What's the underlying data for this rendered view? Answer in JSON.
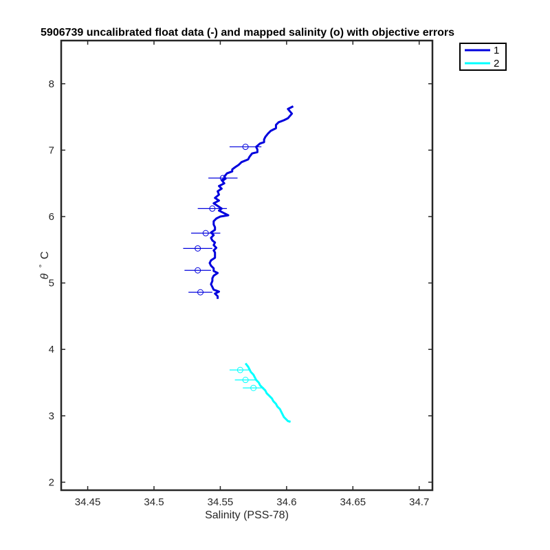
{
  "chart_data": {
    "type": "line",
    "title": "5906739 uncalibrated float data (-) and mapped salinity (o) with objective errors",
    "xlabel": "Salinity (PSS-78)",
    "ylabel_symbol": "θ",
    "ylabel_degree": "°",
    "ylabel_unit": "C",
    "xlim": [
      34.43,
      34.71
    ],
    "ylim": [
      1.88,
      8.65
    ],
    "xticks": [
      34.45,
      34.5,
      34.55,
      34.6,
      34.65,
      34.7
    ],
    "xtick_labels": [
      "34.45",
      "34.5",
      "34.55",
      "34.6",
      "34.65",
      "34.7"
    ],
    "yticks": [
      2,
      3,
      4,
      5,
      6,
      7,
      8
    ],
    "ytick_labels": [
      "2",
      "3",
      "4",
      "5",
      "6",
      "7",
      "8"
    ],
    "grid": false,
    "legend_position": "outside-top-right",
    "series": [
      {
        "name": "1",
        "color": "#0000dd",
        "line": [
          [
            34.605,
            7.66
          ],
          [
            34.601,
            7.62
          ],
          [
            34.604,
            7.55
          ],
          [
            34.601,
            7.48
          ],
          [
            34.598,
            7.45
          ],
          [
            34.594,
            7.42
          ],
          [
            34.592,
            7.38
          ],
          [
            34.592,
            7.33
          ],
          [
            34.588,
            7.29
          ],
          [
            34.586,
            7.25
          ],
          [
            34.584,
            7.2
          ],
          [
            34.583,
            7.16
          ],
          [
            34.583,
            7.12
          ],
          [
            34.58,
            7.1
          ],
          [
            34.577,
            7.05
          ],
          [
            34.578,
            7.01
          ],
          [
            34.578,
            6.97
          ],
          [
            34.574,
            6.95
          ],
          [
            34.572,
            6.9
          ],
          [
            34.571,
            6.86
          ],
          [
            34.566,
            6.82
          ],
          [
            34.564,
            6.78
          ],
          [
            34.561,
            6.74
          ],
          [
            34.559,
            6.71
          ],
          [
            34.559,
            6.68
          ],
          [
            34.555,
            6.65
          ],
          [
            34.553,
            6.6
          ],
          [
            34.554,
            6.57
          ],
          [
            34.551,
            6.55
          ],
          [
            34.553,
            6.5
          ],
          [
            34.549,
            6.46
          ],
          [
            34.551,
            6.42
          ],
          [
            34.548,
            6.38
          ],
          [
            34.549,
            6.33
          ],
          [
            34.546,
            6.28
          ],
          [
            34.549,
            6.24
          ],
          [
            34.545,
            6.2
          ],
          [
            34.548,
            6.16
          ],
          [
            34.551,
            6.12
          ],
          [
            34.549,
            6.09
          ],
          [
            34.553,
            6.05
          ],
          [
            34.556,
            6.02
          ],
          [
            34.55,
            6.0
          ],
          [
            34.547,
            5.97
          ],
          [
            34.545,
            5.93
          ],
          [
            34.545,
            5.88
          ],
          [
            34.546,
            5.84
          ],
          [
            34.546,
            5.8
          ],
          [
            34.543,
            5.76
          ],
          [
            34.545,
            5.72
          ],
          [
            34.543,
            5.68
          ],
          [
            34.544,
            5.64
          ],
          [
            34.546,
            5.61
          ],
          [
            34.545,
            5.57
          ],
          [
            34.547,
            5.53
          ],
          [
            34.545,
            5.49
          ],
          [
            34.546,
            5.46
          ],
          [
            34.546,
            5.42
          ],
          [
            34.546,
            5.38
          ],
          [
            34.543,
            5.34
          ],
          [
            34.542,
            5.3
          ],
          [
            34.543,
            5.26
          ],
          [
            34.545,
            5.22
          ],
          [
            34.545,
            5.18
          ],
          [
            34.548,
            5.15
          ],
          [
            34.545,
            5.11
          ],
          [
            34.544,
            5.07
          ],
          [
            34.544,
            5.03
          ],
          [
            34.543,
            4.98
          ],
          [
            34.544,
            4.94
          ],
          [
            34.545,
            4.9
          ],
          [
            34.549,
            4.87
          ],
          [
            34.546,
            4.84
          ],
          [
            34.548,
            4.8
          ],
          [
            34.548,
            4.76
          ]
        ],
        "mapped": [
          {
            "salinity": 34.569,
            "theta": 7.05,
            "error": 0.012
          },
          {
            "salinity": 34.552,
            "theta": 6.58,
            "error": 0.011
          },
          {
            "salinity": 34.544,
            "theta": 6.12,
            "error": 0.011
          },
          {
            "salinity": 34.539,
            "theta": 5.75,
            "error": 0.011
          },
          {
            "salinity": 34.533,
            "theta": 5.52,
            "error": 0.011
          },
          {
            "salinity": 34.533,
            "theta": 5.19,
            "error": 0.01
          },
          {
            "salinity": 34.535,
            "theta": 4.86,
            "error": 0.009
          }
        ]
      },
      {
        "name": "2",
        "color": "#00ffff",
        "line": [
          [
            34.569,
            3.79
          ],
          [
            34.571,
            3.74
          ],
          [
            34.572,
            3.7
          ],
          [
            34.573,
            3.66
          ],
          [
            34.575,
            3.62
          ],
          [
            34.576,
            3.58
          ],
          [
            34.577,
            3.54
          ],
          [
            34.579,
            3.5
          ],
          [
            34.58,
            3.46
          ],
          [
            34.582,
            3.42
          ],
          [
            34.584,
            3.38
          ],
          [
            34.585,
            3.34
          ],
          [
            34.587,
            3.3
          ],
          [
            34.589,
            3.26
          ],
          [
            34.59,
            3.22
          ],
          [
            34.592,
            3.18
          ],
          [
            34.593,
            3.14
          ],
          [
            34.595,
            3.1
          ],
          [
            34.596,
            3.06
          ],
          [
            34.597,
            3.02
          ],
          [
            34.598,
            2.98
          ],
          [
            34.6,
            2.94
          ],
          [
            34.601,
            2.92
          ],
          [
            34.603,
            2.91
          ]
        ],
        "mapped": [
          {
            "salinity": 34.565,
            "theta": 3.69,
            "error": 0.008
          },
          {
            "salinity": 34.569,
            "theta": 3.54,
            "error": 0.008
          },
          {
            "salinity": 34.575,
            "theta": 3.42,
            "error": 0.008
          }
        ]
      }
    ]
  }
}
